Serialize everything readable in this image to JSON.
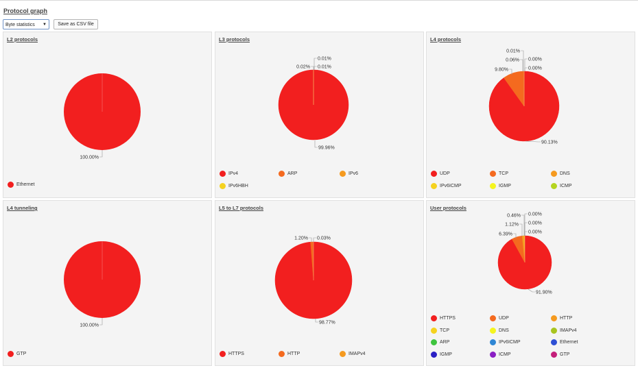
{
  "page": {
    "title": "Protocol graph",
    "stat_select_value": "Byte statistics",
    "csv_button": "Save as CSV file"
  },
  "chart_data": [
    {
      "type": "pie",
      "title": "L2 protocols",
      "slices": [
        {
          "name": "Ethernet",
          "value": 100.0,
          "label": "100.00%",
          "color": "#f21f1f"
        }
      ]
    },
    {
      "type": "pie",
      "title": "L3 protocols",
      "slices": [
        {
          "name": "IPv4",
          "value": 99.96,
          "label": "99.96%",
          "color": "#f21f1f"
        },
        {
          "name": "ARP",
          "value": 0.02,
          "label": "0.02%",
          "color": "#f46a1f"
        },
        {
          "name": "IPv6",
          "value": 0.01,
          "label": "0.01%",
          "color": "#f59a1f"
        },
        {
          "name": "IPv6HBH",
          "value": 0.01,
          "label": "0.01%",
          "color": "#f5d21f"
        }
      ]
    },
    {
      "type": "pie",
      "title": "L4 protocols",
      "slices": [
        {
          "name": "UDP",
          "value": 90.13,
          "label": "90.13%",
          "color": "#f21f1f"
        },
        {
          "name": "TCP",
          "value": 9.8,
          "label": "9.80%",
          "color": "#f46a1f"
        },
        {
          "name": "DNS",
          "value": 0.06,
          "label": "0.06%",
          "color": "#f59a1f"
        },
        {
          "name": "IPv6ICMP",
          "value": 0.01,
          "label": "0.01%",
          "color": "#f5d21f"
        },
        {
          "name": "IGMP",
          "value": 0.0,
          "label": "0.00%",
          "color": "#f5f51f"
        },
        {
          "name": "ICMP",
          "value": 0.0,
          "label": "0.00%",
          "color": "#b5d41f"
        }
      ]
    },
    {
      "type": "pie",
      "title": "L4 tunneling",
      "slices": [
        {
          "name": "GTP",
          "value": 100.0,
          "label": "100.00%",
          "color": "#f21f1f"
        }
      ]
    },
    {
      "type": "pie",
      "title": "L5 to L7 protocols",
      "slices": [
        {
          "name": "HTTPS",
          "value": 98.77,
          "label": "98.77%",
          "color": "#f21f1f"
        },
        {
          "name": "HTTP",
          "value": 1.2,
          "label": "1.20%",
          "color": "#f46a1f"
        },
        {
          "name": "IMAPv4",
          "value": 0.03,
          "label": "0.03%",
          "color": "#f59a1f"
        }
      ]
    },
    {
      "type": "pie",
      "title": "User protocols",
      "slices": [
        {
          "name": "HTTPS",
          "value": 91.9,
          "label": "91.90%",
          "color": "#f21f1f"
        },
        {
          "name": "UDP",
          "value": 6.39,
          "label": "6.39%",
          "color": "#f46a1f"
        },
        {
          "name": "HTTP",
          "value": 1.12,
          "label": "1.12%",
          "color": "#f59a1f"
        },
        {
          "name": "TCP",
          "value": 0.46,
          "label": "0.46%",
          "color": "#f5d21f"
        },
        {
          "name": "DNS",
          "value": 0.0,
          "label": "0.00%",
          "color": "#f5f51f"
        },
        {
          "name": "IMAPv4",
          "value": 0.0,
          "label": "0.00%",
          "color": "#a8c41f"
        },
        {
          "name": "ARP",
          "value": 0.0,
          "label": "0.00%",
          "color": "#3ec43e"
        },
        {
          "name": "IPv6ICMP",
          "value": 0.0,
          "label": "",
          "color": "#2e86d4"
        },
        {
          "name": "Ethernet",
          "value": 0.0,
          "label": "",
          "color": "#2e4fd4"
        },
        {
          "name": "IGMP",
          "value": 0.0,
          "label": "",
          "color": "#2a1fc4"
        },
        {
          "name": "ICMP",
          "value": 0.0,
          "label": "",
          "color": "#8a1fc4"
        },
        {
          "name": "GTP",
          "value": 0.0,
          "label": "",
          "color": "#c41f7a"
        }
      ]
    }
  ]
}
